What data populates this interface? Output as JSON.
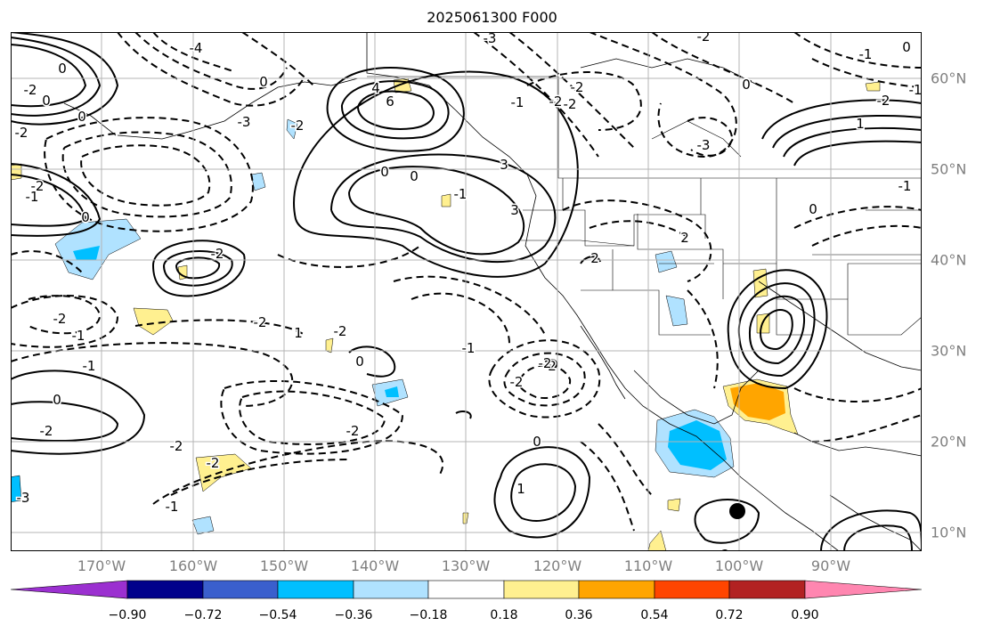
{
  "title": "2025061300 F000",
  "axes": {
    "lon_labels": [
      "170°W",
      "160°W",
      "150°W",
      "140°W",
      "130°W",
      "120°W",
      "110°W",
      "100°W",
      "90°W"
    ],
    "lat_labels": [
      "60°N",
      "50°N",
      "40°N",
      "30°N",
      "20°N",
      "10°N"
    ],
    "lon_range": [
      -180,
      -80
    ],
    "lat_range": [
      8,
      65
    ],
    "grid": true
  },
  "colorbar": {
    "ticks": [
      "−0.90",
      "−0.72",
      "−0.54",
      "−0.36",
      "−0.18",
      "0.18",
      "0.36",
      "0.54",
      "0.72",
      "0.90"
    ],
    "colors": [
      "#9b30d0",
      "#00008b",
      "#3a5fcd",
      "#00bfff",
      "#b0e2ff",
      "#ffffff",
      "#fff090",
      "#ffa500",
      "#ff4500",
      "#b22222",
      "#ff86b0"
    ],
    "extend": "both"
  },
  "contour_labels": [
    "0",
    "-4",
    "-2",
    "-3",
    "6",
    "4",
    "0",
    "-1",
    "-2",
    "-3",
    "-2",
    "0",
    "-3",
    "0",
    "3",
    "0",
    "-1",
    "3",
    "-2",
    "-2",
    "-1",
    "-2",
    "0",
    "-1",
    "0",
    "-2",
    "-1",
    "1",
    "0",
    "-2",
    "-2",
    "-1",
    "-2",
    "1",
    "-2",
    "0",
    "-1",
    "2",
    "-2",
    "-2",
    "0",
    "-2",
    "0",
    "1",
    "-1",
    "-2",
    "-3",
    "-2",
    "2",
    "-2",
    "-1",
    "-2",
    "0",
    "-1",
    "2",
    "-2",
    "0",
    "-2"
  ],
  "styles": {
    "solid_contour": "#000000",
    "dashed_contour": "#000000",
    "land_lines": "#000000",
    "grid": "#b4b4b4"
  }
}
